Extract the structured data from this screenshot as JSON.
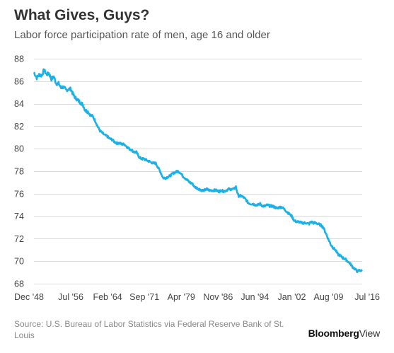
{
  "header": {
    "title": "What Gives, Guys?",
    "subtitle": "Labor force participation rate of men, age 16 and older"
  },
  "footer": {
    "source": "Source: U.S. Bureau of Labor Statistics via Federal Reserve Bank of St. Louis",
    "brand_bold": "Bloomberg",
    "brand_light": "View"
  },
  "colors": {
    "line": "#1bb1e6",
    "grid": "#dcdcdc"
  },
  "chart_data": {
    "type": "line",
    "title": "What Gives, Guys?",
    "subtitle": "Labor force participation rate of men, age 16 and older",
    "xlabel": "",
    "ylabel": "",
    "ylim": [
      68,
      88
    ],
    "yticks": [
      68,
      70,
      72,
      74,
      76,
      78,
      80,
      82,
      84,
      86,
      88
    ],
    "xlim": [
      1948.917,
      2016.5
    ],
    "xticks": [
      {
        "label": "Dec '48",
        "value": 1948.917
      },
      {
        "label": "Jul '56",
        "value": 1956.5
      },
      {
        "label": "Feb '64",
        "value": 1964.083
      },
      {
        "label": "Sep '71",
        "value": 1971.667
      },
      {
        "label": "Apr '79",
        "value": 1979.25
      },
      {
        "label": "Nov '86",
        "value": 1986.833
      },
      {
        "label": "Jun '94",
        "value": 1994.417
      },
      {
        "label": "Jan '02",
        "value": 2002.0
      },
      {
        "label": "Aug '09",
        "value": 2009.583
      },
      {
        "label": "Jul '16",
        "value": 2016.5
      }
    ],
    "grid": true,
    "series": [
      {
        "color": "#1bb1e6",
        "x": [
          1948.9,
          1949.5,
          1950.0,
          1950.5,
          1951.0,
          1951.5,
          1952.0,
          1952.5,
          1953.0,
          1953.5,
          1954.0,
          1954.5,
          1955.0,
          1955.5,
          1956.0,
          1956.5,
          1957.0,
          1957.5,
          1958.0,
          1958.5,
          1959.0,
          1959.5,
          1960.0,
          1960.5,
          1961.0,
          1961.5,
          1962.0,
          1962.5,
          1963.0,
          1963.5,
          1964.0,
          1964.5,
          1965.0,
          1965.5,
          1966.0,
          1966.5,
          1967.0,
          1967.5,
          1968.0,
          1968.5,
          1969.0,
          1969.5,
          1970.0,
          1970.5,
          1971.0,
          1971.5,
          1972.0,
          1972.5,
          1973.0,
          1973.5,
          1974.0,
          1974.5,
          1975.0,
          1975.5,
          1976.0,
          1976.5,
          1977.0,
          1977.5,
          1978.0,
          1978.5,
          1979.0,
          1979.5,
          1980.0,
          1980.5,
          1981.0,
          1981.5,
          1982.0,
          1982.5,
          1983.0,
          1983.5,
          1984.0,
          1984.5,
          1985.0,
          1985.5,
          1986.0,
          1986.5,
          1987.0,
          1987.5,
          1988.0,
          1988.5,
          1989.0,
          1989.5,
          1990.0,
          1990.5,
          1991.0,
          1991.5,
          1992.0,
          1992.5,
          1993.0,
          1993.5,
          1994.0,
          1994.5,
          1995.0,
          1995.5,
          1996.0,
          1996.5,
          1997.0,
          1997.5,
          1998.0,
          1998.5,
          1999.0,
          1999.5,
          2000.0,
          2000.5,
          2001.0,
          2001.5,
          2002.0,
          2002.5,
          2003.0,
          2003.5,
          2004.0,
          2004.5,
          2005.0,
          2005.5,
          2006.0,
          2006.5,
          2007.0,
          2007.5,
          2008.0,
          2008.5,
          2009.0,
          2009.5,
          2010.0,
          2010.5,
          2011.0,
          2011.5,
          2012.0,
          2012.5,
          2013.0,
          2013.5,
          2014.0,
          2014.5,
          2015.0,
          2015.5,
          2016.0,
          2016.5
        ],
        "values": [
          86.8,
          86.3,
          86.6,
          86.5,
          87.0,
          86.6,
          86.7,
          86.2,
          86.4,
          85.8,
          85.8,
          85.4,
          85.5,
          85.2,
          85.3,
          85.3,
          84.8,
          84.5,
          84.3,
          84.1,
          83.9,
          83.4,
          83.3,
          83.0,
          82.9,
          82.5,
          82.0,
          81.6,
          81.4,
          81.2,
          81.1,
          80.9,
          80.8,
          80.6,
          80.5,
          80.5,
          80.4,
          80.4,
          80.2,
          80.0,
          79.9,
          79.7,
          79.7,
          79.3,
          79.1,
          79.1,
          79.0,
          78.9,
          78.8,
          78.7,
          78.7,
          78.3,
          77.9,
          77.4,
          77.4,
          77.5,
          77.6,
          77.8,
          77.9,
          78.0,
          77.9,
          77.6,
          77.4,
          77.2,
          77.0,
          76.9,
          76.6,
          76.5,
          76.4,
          76.3,
          76.3,
          76.4,
          76.3,
          76.3,
          76.3,
          76.3,
          76.2,
          76.3,
          76.2,
          76.3,
          76.4,
          76.4,
          76.4,
          76.6,
          75.8,
          75.8,
          75.7,
          75.5,
          75.2,
          75.1,
          75.1,
          75.0,
          75.0,
          75.1,
          74.9,
          74.9,
          75.0,
          74.9,
          74.9,
          74.8,
          74.7,
          74.8,
          74.8,
          74.6,
          74.4,
          74.2,
          74.0,
          73.6,
          73.5,
          73.5,
          73.4,
          73.4,
          73.4,
          73.3,
          73.5,
          73.4,
          73.4,
          73.3,
          73.2,
          73.0,
          72.5,
          72.0,
          71.5,
          71.2,
          71.0,
          70.6,
          70.5,
          70.3,
          70.2,
          70.0,
          69.8,
          69.5,
          69.3,
          69.1,
          69.2,
          69.1
        ]
      }
    ]
  }
}
